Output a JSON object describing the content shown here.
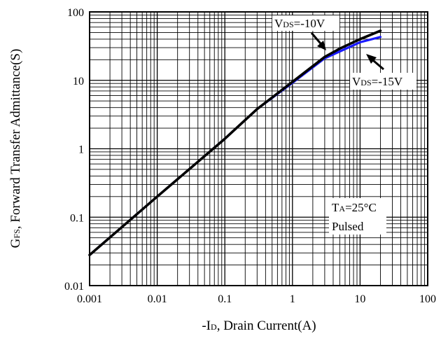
{
  "chart_data": {
    "type": "line",
    "xscale": "log",
    "yscale": "log",
    "xlim": [
      0.001,
      100
    ],
    "ylim": [
      0.01,
      100
    ],
    "grid": true,
    "xlabel": {
      "prefix": "-I",
      "sub": "D",
      "rest": ", Drain Current(A)"
    },
    "ylabel": {
      "prefix": "G",
      "sub": "FS",
      "rest": ", Forward Transfer Admittance(S)"
    },
    "xticks": [
      {
        "value": 0.001,
        "label": "0.001"
      },
      {
        "value": 0.01,
        "label": "0.01"
      },
      {
        "value": 0.1,
        "label": "0.1"
      },
      {
        "value": 1,
        "label": "1"
      },
      {
        "value": 10,
        "label": "10"
      },
      {
        "value": 100,
        "label": "100"
      }
    ],
    "yticks": [
      {
        "value": 0.01,
        "label": "0.01"
      },
      {
        "value": 0.1,
        "label": "0.1"
      },
      {
        "value": 1,
        "label": "1"
      },
      {
        "value": 10,
        "label": "10"
      },
      {
        "value": 100,
        "label": "100"
      }
    ],
    "series": [
      {
        "label_prefix": "V",
        "label_sub": "DS",
        "label_rest": "=-15V",
        "color": "#1a1aff",
        "points": [
          [
            0.001,
            0.028
          ],
          [
            0.01,
            0.2
          ],
          [
            0.1,
            1.4
          ],
          [
            0.3,
            3.8
          ],
          [
            1,
            9.2
          ],
          [
            3,
            21
          ],
          [
            10,
            36
          ],
          [
            20,
            43
          ]
        ]
      },
      {
        "label_prefix": "V",
        "label_sub": "DS",
        "label_rest": "=-10V",
        "color": "#000000",
        "points": [
          [
            0.001,
            0.028
          ],
          [
            0.01,
            0.2
          ],
          [
            0.1,
            1.4
          ],
          [
            0.3,
            3.8
          ],
          [
            1,
            9.5
          ],
          [
            3,
            22
          ],
          [
            5,
            29
          ],
          [
            10,
            40
          ],
          [
            20,
            53
          ]
        ]
      }
    ],
    "annotations": [
      {
        "line1_prefix": "T",
        "line1_sub": "A",
        "line1_rest": "=25°C",
        "line2": "Pulsed"
      }
    ]
  }
}
